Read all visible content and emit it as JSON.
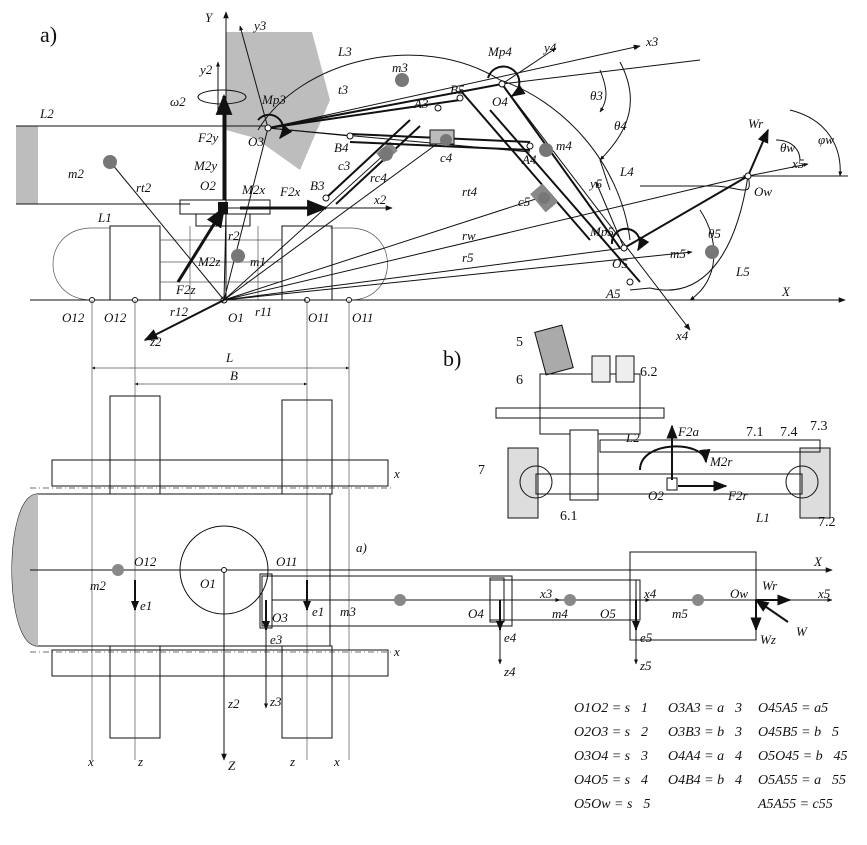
{
  "panels": {
    "a": "a)",
    "b": "b)",
    "a_small": "a)"
  },
  "side_view": {
    "axes": {
      "Y": "Y",
      "X": "X"
    },
    "frames": {
      "y2": "y2",
      "x2": "x2",
      "z2": "z2",
      "y3": "y3",
      "x3": "x3",
      "y4": "y4",
      "x4": "x4",
      "y5": "y5",
      "x5": "x5"
    },
    "points": {
      "O1": "O1",
      "O2": "O2",
      "O3": "O3",
      "O4": "O4",
      "O5": "O5",
      "Ow": "Ow",
      "O11a": "O11",
      "O11b": "O11",
      "O12a": "O12",
      "O12b": "O12",
      "A3": "A3",
      "A4": "A4",
      "A5": "A5",
      "B3": "B3",
      "B4": "B4",
      "B5": "B5"
    },
    "masses": {
      "m1": "m1",
      "m2": "m2",
      "m3": "m3",
      "m4": "m4",
      "m5": "m5"
    },
    "lengths": {
      "L1": "L1",
      "L2": "L2",
      "L3": "L3",
      "L4": "L4",
      "L5": "L5"
    },
    "radii": {
      "r2": "r2",
      "r11": "r11",
      "r12": "r12",
      "rt2": "rt2",
      "t3": "t3",
      "rc4": "rc4",
      "rt4": "rt4",
      "rw": "rw",
      "r5": "r5"
    },
    "forces": {
      "F2y": "F2y",
      "M2y": "M2y",
      "M2x": "M2x",
      "F2x": "F2x",
      "M2z": "M2z",
      "F2z": "F2z",
      "Mp3": "Mp3",
      "Mp4": "Mp4",
      "Mp5": "Mp5",
      "Wr": "Wr",
      "omega2": "ω2"
    },
    "cylinders": {
      "c3": "c3",
      "c4": "c4",
      "c5": "c5"
    },
    "angles": {
      "theta3": "θ3",
      "theta4": "θ4",
      "theta5": "θ5",
      "thetaw": "θw",
      "phiw": "φw"
    },
    "dims": {
      "L": "L",
      "B": "B"
    }
  },
  "detail_b": {
    "parts": {
      "p5": "5",
      "p6": "6",
      "p62": "6.2",
      "p7": "7",
      "p61": "6.1",
      "p71": "7.1",
      "p74": "7.4",
      "p73": "7.3",
      "p72": "7.2"
    },
    "labels": {
      "L2": "L2",
      "L1": "L1",
      "O2": "O2",
      "F2a": "F2a",
      "M2r": "M2r",
      "F2r": "F2r"
    }
  },
  "top_view": {
    "axes": {
      "x": "x",
      "z": "z",
      "X": "X",
      "Z": "Z"
    },
    "frames": {
      "e1a": "e1",
      "e1b": "e1",
      "e3": "e3",
      "e4": "e4",
      "e5": "e5",
      "z2": "z2",
      "z3": "z3",
      "z4": "z4",
      "z5": "z5",
      "x3": "x3",
      "x4": "x4",
      "x5": "x5"
    },
    "points": {
      "O1": "O1",
      "O11": "O11",
      "O12": "O12",
      "O3": "O3",
      "O4": "O4",
      "O5": "O5",
      "Ow": "Ow"
    },
    "masses": {
      "m2": "m2",
      "m3": "m3",
      "m4": "m4",
      "m5": "m5"
    },
    "forces": {
      "Wr": "Wr",
      "Wz": "Wz",
      "W": "W"
    }
  },
  "equations": {
    "col1": [
      "O1O2 = s⃗1",
      "O2O3 = s⃗2",
      "O3O4 = s⃗3",
      "O4O5 = s⃗4",
      "O5Ow = s⃗5"
    ],
    "col2": [
      "O3A3 = a⃗3",
      "O3B3 = b⃗3",
      "O4A4 = a⃗4",
      "O4B4 = b⃗4"
    ],
    "col3": [
      "O45A5 = a5",
      "O45B5 = b⃗5",
      "O5O45 = b⃗45",
      "O5A55 = a⃗55",
      "A5A55 = c55"
    ]
  }
}
